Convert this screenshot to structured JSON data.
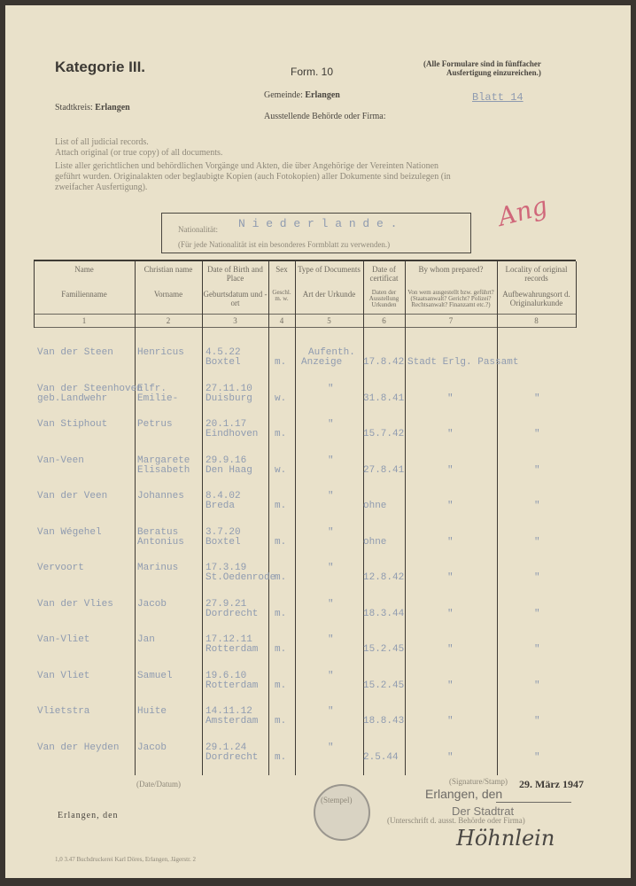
{
  "header": {
    "category": "Kategorie III.",
    "form": "Form. 10",
    "note_line1": "(Alle Formulare sind in fünffacher",
    "note_line2": "Ausfertigung einzureichen.)",
    "gemeinde_label": "Gemeinde:",
    "gemeinde_value": "Erlangen",
    "blatt": "Blatt 14",
    "stadtkreis_label": "Stadtkreis:",
    "stadtkreis_value": "Erlangen",
    "behoerde_label": "Ausstellende Behörde oder Firma:"
  },
  "intro": {
    "line1": "List of all judicial records.",
    "line2": "Attach original (or true copy) of all documents.",
    "line3": "Liste aller gerichtlichen und behördlichen Vorgänge und Akten, die über Angehörige der Vereinten Nationen",
    "line4": "geführt wurden. Originalakten oder beglaubigte Kopien (auch Fotokopien) aller Dokumente sind beizulegen (in",
    "line5": "zweifacher Ausfertigung)."
  },
  "nationality": {
    "label": "Nationalität:",
    "value": "N i e d e r l a n d e .",
    "note": "(Für jede Nationalität ist ein besonderes Formblatt zu verwenden.)",
    "red_annotation": "Ang"
  },
  "columns": [
    {
      "en": "Name",
      "de": "Familienname",
      "num": "1"
    },
    {
      "en": "Christian name",
      "de": "Vorname",
      "num": "2"
    },
    {
      "en": "Date of Birth and Place",
      "de": "Geburtsdatum und -ort",
      "num": "3"
    },
    {
      "en": "Sex",
      "de": "Geschl. m. w.",
      "num": "4"
    },
    {
      "en": "Type of Documents",
      "de": "Art der Urkunde",
      "num": "5"
    },
    {
      "en": "Date of certificat",
      "de": "Daten der Ausstellung Urkunden",
      "num": "6"
    },
    {
      "en": "By whom prepared?",
      "de": "Von wem ausgestellt bzw. geführt? (Staatsanwalt? Gericht? Polizei? Rechtsanwalt? Finanzamt etc.?)",
      "num": "7"
    },
    {
      "en": "Locality of original records",
      "de": "Aufbewahrungsort d. Originalurkunde",
      "num": "8"
    }
  ],
  "rows": [
    {
      "name": "Van der Steen",
      "name2": "",
      "first": "Henricus",
      "first2": "",
      "birth_date": "4.5.22",
      "birth_place": "Boxtel",
      "sex": "m.",
      "doc": "Aufenth.",
      "doc2": "Anzeige",
      "cert": "17.8.42",
      "by": "Stadt Erlg. Passamt",
      "loc": ""
    },
    {
      "name": "Van der Steenhoven",
      "name2": "geb.Landwehr",
      "first": "Elfr.",
      "first2": "Emilie-",
      "birth_date": "27.11.10",
      "birth_place": "Duisburg",
      "sex": "w.",
      "doc": "\"",
      "doc2": "",
      "cert": "31.8.41",
      "by": "\"",
      "loc": "\""
    },
    {
      "name": "Van Stiphout",
      "name2": "",
      "first": "Petrus",
      "first2": "",
      "birth_date": "20.1.17",
      "birth_place": "Eindhoven",
      "sex": "m.",
      "doc": "\"",
      "doc2": "",
      "cert": "15.7.42",
      "by": "\"",
      "loc": "\""
    },
    {
      "name": "Van-Veen",
      "name2": "",
      "first": "Margarete",
      "first2": "Elisabeth",
      "birth_date": "29.9.16",
      "birth_place": "Den Haag",
      "sex": "w.",
      "doc": "\"",
      "doc2": "",
      "cert": "27.8.41",
      "by": "\"",
      "loc": "\""
    },
    {
      "name": "Van der Veen",
      "name2": "",
      "first": "Johannes",
      "first2": "",
      "birth_date": "8.4.02",
      "birth_place": "Breda",
      "sex": "m.",
      "doc": "\"",
      "doc2": "",
      "cert": "ohne",
      "by": "\"",
      "loc": "\""
    },
    {
      "name": "Van Wégehel",
      "name2": "",
      "first": "Beratus",
      "first2": "Antonius",
      "birth_date": "3.7.20",
      "birth_place": "Boxtel",
      "sex": "m.",
      "doc": "\"",
      "doc2": "",
      "cert": "ohne",
      "by": "\"",
      "loc": "\""
    },
    {
      "name": "Vervoort",
      "name2": "",
      "first": "Marinus",
      "first2": "",
      "birth_date": "17.3.19",
      "birth_place": "St.Oedenrode",
      "sex": "m.",
      "doc": "\"",
      "doc2": "",
      "cert": "12.8.42",
      "by": "\"",
      "loc": "\""
    },
    {
      "name": "Van der Vlies",
      "name2": "",
      "first": "Jacob",
      "first2": "",
      "birth_date": "27.9.21",
      "birth_place": "Dordrecht",
      "sex": "m.",
      "doc": "\"",
      "doc2": "",
      "cert": "18.3.44",
      "by": "\"",
      "loc": "\""
    },
    {
      "name": "Van-Vliet",
      "name2": "",
      "first": "Jan",
      "first2": "",
      "birth_date": "17.12.11",
      "birth_place": "Rotterdam",
      "sex": "m.",
      "doc": "\"",
      "doc2": "",
      "cert": "15.2.45",
      "by": "\"",
      "loc": "\""
    },
    {
      "name": "Van Vliet",
      "name2": "",
      "first": "Samuel",
      "first2": "",
      "birth_date": "19.6.10",
      "birth_place": "Rotterdam",
      "sex": "m.",
      "doc": "\"",
      "doc2": "",
      "cert": "15.2.45",
      "by": "\"",
      "loc": "\""
    },
    {
      "name": "Vlietstra",
      "name2": "",
      "first": "Huite",
      "first2": "",
      "birth_date": "14.11.12",
      "birth_place": "Amsterdam",
      "sex": "m.",
      "doc": "\"",
      "doc2": "",
      "cert": "18.8.43",
      "by": "\"",
      "loc": "\""
    },
    {
      "name": "Van der Heyden",
      "name2": "",
      "first": "Jacob",
      "first2": "",
      "birth_date": "29.1.24",
      "birth_place": "Dordrecht",
      "sex": "m.",
      "doc": "\"",
      "doc2": "",
      "cert": "2.5.44",
      "by": "\"",
      "loc": "\""
    }
  ],
  "footer": {
    "date_label": "(Date/Datum)",
    "signature_label": "(Signature/Stamp)",
    "stamp_date": "29. März 1947",
    "stamp_place": "Erlangen, den",
    "stamp_authority": "Der Stadtrat",
    "erlangen_den": "Erlangen, den",
    "stempel": "(Stempel)",
    "unterschrift": "(Unterschrift d. ausst. Behörde oder Firma)",
    "printer": "1,0 3.47 Buchdruckerei Karl Döres, Erlangen, Jägerstr. 2",
    "signature": "Höhnlein"
  }
}
